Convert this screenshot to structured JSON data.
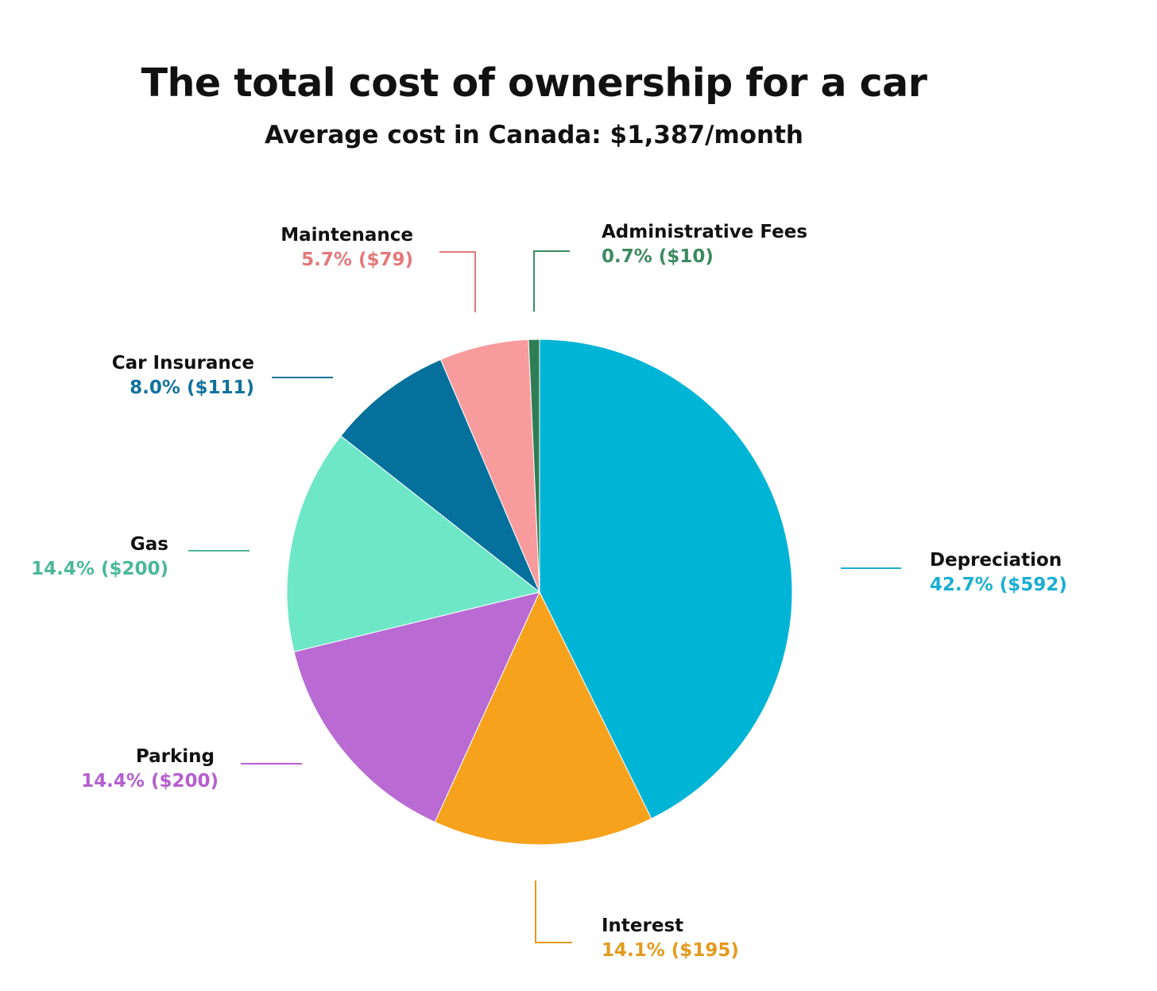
{
  "chart_data": {
    "type": "pie",
    "title": "The total cost of ownership for a car",
    "subtitle": "Average cost in Canada: $1,387/month",
    "slices": [
      {
        "label": "Depreciation",
        "value_text": "42.7% ($592)",
        "percent": 42.7,
        "amount": 592,
        "color": "#00b4d6"
      },
      {
        "label": "Interest",
        "value_text": "14.1% ($195)",
        "percent": 14.1,
        "amount": 195,
        "color": "#f7a21d"
      },
      {
        "label": "Parking",
        "value_text": "14.4% ($200)",
        "percent": 14.4,
        "amount": 200,
        "color": "#b96ad3"
      },
      {
        "label": "Gas",
        "value_text": "14.4% ($200)",
        "percent": 14.4,
        "amount": 200,
        "color": "#6ee7c6"
      },
      {
        "label": "Car Insurance",
        "value_text": "8.0% ($111)",
        "percent": 8.0,
        "amount": 111,
        "color": "#04709b"
      },
      {
        "label": "Maintenance",
        "value_text": "5.7% ($79)",
        "percent": 5.7,
        "amount": 79,
        "color": "#f79b9d"
      },
      {
        "label": "Administrative Fees",
        "value_text": "0.7% ($10)",
        "percent": 0.7,
        "amount": 10,
        "color": "#2e7d55"
      }
    ]
  },
  "colors": {
    "depreciation_label": "#1aaed2",
    "interest_label": "#e49a1c",
    "parking_label": "#b45fd0",
    "gas_label": "#4cb89a",
    "insurance_label": "#11729c",
    "maintenance_label": "#e4787a",
    "admin_label": "#3d8a5f"
  }
}
